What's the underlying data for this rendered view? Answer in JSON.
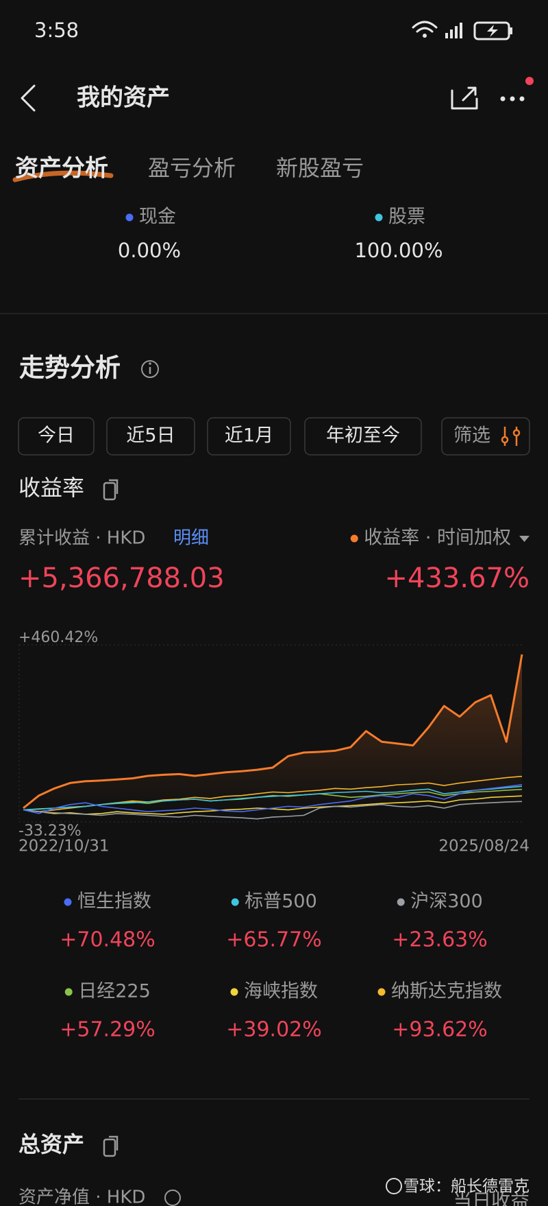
{
  "status_bar": {
    "time": "3:58"
  },
  "header": {
    "title": "我的资产"
  },
  "tabs": [
    "资产分析",
    "盈亏分析",
    "新股盈亏"
  ],
  "allocation": [
    {
      "name": "现金",
      "value": "0.00%",
      "color": "#4a6cf7"
    },
    {
      "name": "股票",
      "value": "100.00%",
      "color": "#3ec6e0"
    }
  ],
  "trend": {
    "title": "走势分析",
    "periods": [
      "今日",
      "近5日",
      "近1月",
      "年初至今"
    ],
    "filter": "筛选",
    "metric_title": "收益率",
    "cumulative_label": "累计收益 · HKD",
    "detail_link": "明细",
    "cumulative_value": "+5,366,788.03"
  },
  "chart_data": {
    "type": "line",
    "ylim": [
      -33.23,
      460.42
    ],
    "yticks": [
      {
        "value": 460.42,
        "label": "+460.42%"
      },
      {
        "value": -33.23,
        "label": "-33.23%"
      }
    ],
    "grid": true,
    "categories": [
      "2022/10/31",
      null,
      null,
      null,
      null,
      null,
      null,
      null,
      null,
      null,
      null,
      null,
      null,
      null,
      null,
      null,
      null,
      null,
      null,
      null,
      null,
      null,
      null,
      null,
      null,
      null,
      null,
      null,
      null,
      null,
      null,
      null,
      "2025/08/24"
    ],
    "series": [
      {
        "name": "收益率 · 时间加权",
        "color": "#f57c2b",
        "total_label": "+433.67%",
        "values": [
          5,
          40,
          60,
          75,
          80,
          82,
          85,
          88,
          95,
          98,
          100,
          95,
          100,
          105,
          108,
          112,
          118,
          150,
          160,
          162,
          165,
          175,
          220,
          190,
          185,
          180,
          230,
          290,
          260,
          300,
          320,
          190,
          433.67
        ]
      },
      {
        "name": "恒生指数",
        "color": "#4a6cf7",
        "total_label": "+70.48%",
        "values": [
          0,
          -10,
          5,
          15,
          20,
          10,
          5,
          0,
          -5,
          -2,
          0,
          5,
          2,
          -3,
          -5,
          0,
          5,
          10,
          8,
          15,
          20,
          25,
          35,
          40,
          35,
          45,
          40,
          30,
          45,
          55,
          60,
          65,
          70.48
        ]
      },
      {
        "name": "标普500",
        "color": "#3ec6e0",
        "total_label": "+65.77%",
        "values": [
          0,
          2,
          5,
          8,
          10,
          15,
          18,
          20,
          22,
          25,
          28,
          30,
          25,
          28,
          32,
          35,
          38,
          40,
          42,
          45,
          48,
          50,
          52,
          48,
          50,
          55,
          58,
          45,
          50,
          55,
          58,
          62,
          65.77
        ]
      },
      {
        "name": "沪深300",
        "color": "#9aa0a6",
        "total_label": "+23.63%",
        "values": [
          0,
          -5,
          -8,
          -10,
          -12,
          -15,
          -10,
          -12,
          -15,
          -18,
          -20,
          -15,
          -18,
          -20,
          -22,
          -25,
          -20,
          -18,
          -15,
          5,
          10,
          8,
          12,
          15,
          10,
          8,
          12,
          5,
          15,
          18,
          20,
          22,
          23.63
        ]
      },
      {
        "name": "日经225",
        "color": "#8bc34a",
        "total_label": "+57.29%",
        "values": [
          0,
          3,
          5,
          8,
          10,
          15,
          20,
          22,
          18,
          25,
          28,
          30,
          25,
          28,
          30,
          35,
          40,
          38,
          42,
          45,
          40,
          35,
          38,
          42,
          45,
          48,
          50,
          40,
          45,
          50,
          52,
          55,
          57.29
        ]
      },
      {
        "name": "海峡指数",
        "color": "#f0d43a",
        "total_label": "+39.02%",
        "values": [
          0,
          -5,
          -10,
          -8,
          -12,
          -10,
          -5,
          -8,
          -10,
          -12,
          -8,
          -5,
          -3,
          0,
          2,
          5,
          3,
          0,
          5,
          8,
          10,
          12,
          15,
          18,
          20,
          22,
          25,
          20,
          28,
          30,
          35,
          37,
          39.02
        ]
      },
      {
        "name": "纳斯达克指数",
        "color": "#f5b82e",
        "total_label": "+93.62%",
        "values": [
          0,
          -5,
          0,
          5,
          10,
          15,
          20,
          25,
          22,
          28,
          30,
          35,
          32,
          38,
          40,
          45,
          50,
          48,
          52,
          55,
          60,
          58,
          62,
          65,
          70,
          72,
          75,
          68,
          75,
          80,
          85,
          90,
          93.62
        ]
      }
    ]
  },
  "total_assets": {
    "title": "总资产",
    "net_label": "资产净值 · HKD",
    "today_label": "当日收益"
  },
  "watermark": "雪球：船长德雷克"
}
